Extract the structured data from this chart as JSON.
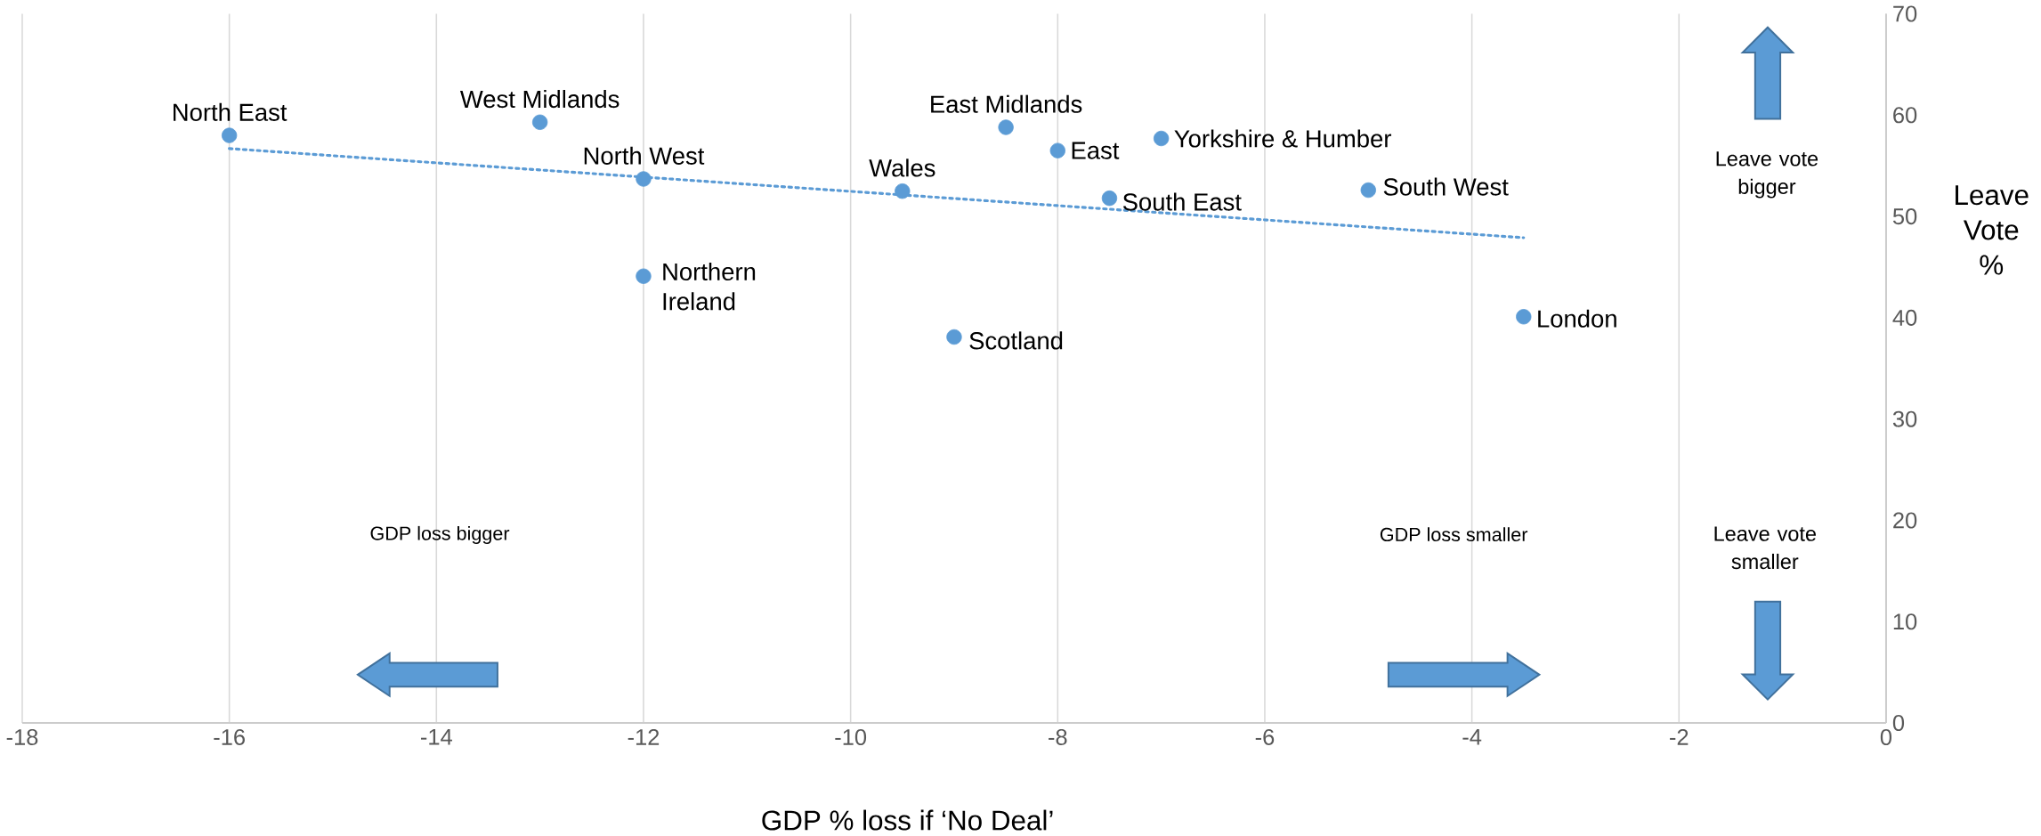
{
  "chart_data": {
    "type": "scatter",
    "xlabel": "GDP % loss if ‘No Deal’",
    "ylabel": "Leave Vote %",
    "x": [
      -16,
      -13,
      -12,
      -12,
      -9.5,
      -9,
      -8.5,
      -8,
      -7,
      -7.5,
      -5,
      -3.5
    ],
    "series": [
      {
        "color": "#5b9bd5",
        "marker": "circle",
        "values": [
          58.0,
          59.3,
          53.7,
          44.1,
          52.5,
          38.1,
          58.8,
          56.5,
          57.7,
          51.8,
          52.6,
          40.1
        ]
      },
      {
        "type": "line",
        "color": "#5b9bd5",
        "line_style": "dotted",
        "marker": "none",
        "x": [
          -16,
          -3.5
        ],
        "values": [
          56.7,
          47.9
        ]
      }
    ],
    "xlim": [
      -18,
      0
    ],
    "xticks": [
      -18,
      -16,
      -14,
      -12,
      -10,
      -8,
      -6,
      -4,
      -2,
      0
    ],
    "ylim": [
      0,
      70
    ],
    "yticks": [
      0,
      10,
      20,
      30,
      40,
      50,
      60,
      70
    ],
    "grid": "x",
    "annotations": [
      {
        "text": "North East",
        "x": -16,
        "y": 58.0
      },
      {
        "text": "West Midlands",
        "x": -13,
        "y": 59.3
      },
      {
        "text": "North West",
        "x": -12,
        "y": 53.7
      },
      {
        "text": "Northern Ireland",
        "x": -12,
        "y": 44.1
      },
      {
        "text": "Wales",
        "x": -9.5,
        "y": 52.5
      },
      {
        "text": "Scotland",
        "x": -9,
        "y": 38.1
      },
      {
        "text": "East Midlands",
        "x": -8.5,
        "y": 58.8
      },
      {
        "text": "East",
        "x": -8,
        "y": 56.5
      },
      {
        "text": "Yorkshire & Humber",
        "x": -7,
        "y": 57.7
      },
      {
        "text": "South East",
        "x": -7.5,
        "y": 51.8
      },
      {
        "text": "South West",
        "x": -5,
        "y": 52.6
      },
      {
        "text": "London",
        "x": -3.5,
        "y": 40.1
      },
      "Leave vote bigger",
      "Leave vote smaller",
      "GDP loss bigger",
      "GDP loss smaller"
    ]
  }
}
